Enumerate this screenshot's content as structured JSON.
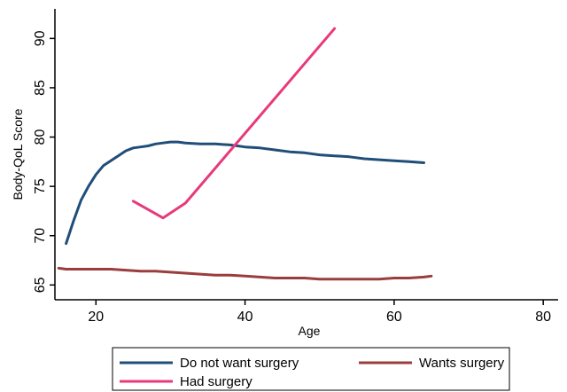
{
  "chart_data": {
    "type": "line",
    "xlabel": "Age",
    "ylabel": "Body-QoL Score",
    "xlim": [
      14.5,
      82
    ],
    "ylim": [
      63.5,
      93
    ],
    "x_ticks": [
      20,
      40,
      60,
      80
    ],
    "y_ticks": [
      65,
      70,
      75,
      80,
      85,
      90
    ],
    "grid": false,
    "legend_position": "bottom",
    "series": [
      {
        "name": "Do not want surgery",
        "color": "#1f4e79",
        "x": [
          16,
          17,
          18,
          19,
          20,
          21,
          22,
          23,
          24,
          25,
          26,
          27,
          28,
          29,
          30,
          31,
          32,
          34,
          36,
          38,
          40,
          42,
          44,
          46,
          48,
          50,
          52,
          54,
          56,
          58,
          60,
          62,
          64
        ],
        "y": [
          69.2,
          71.5,
          73.6,
          75.0,
          76.2,
          77.1,
          77.6,
          78.1,
          78.6,
          78.9,
          79.0,
          79.1,
          79.3,
          79.4,
          79.5,
          79.5,
          79.4,
          79.3,
          79.3,
          79.2,
          79.0,
          78.9,
          78.7,
          78.5,
          78.4,
          78.2,
          78.1,
          78.0,
          77.8,
          77.7,
          77.6,
          77.5,
          77.4
        ]
      },
      {
        "name": "Wants surgery",
        "color": "#9b3d3d",
        "x": [
          15,
          16,
          18,
          20,
          22,
          24,
          26,
          28,
          30,
          32,
          34,
          36,
          38,
          40,
          42,
          44,
          46,
          48,
          50,
          52,
          54,
          56,
          58,
          60,
          62,
          64,
          65
        ],
        "y": [
          66.7,
          66.6,
          66.6,
          66.6,
          66.6,
          66.5,
          66.4,
          66.4,
          66.3,
          66.2,
          66.1,
          66.0,
          66.0,
          65.9,
          65.8,
          65.7,
          65.7,
          65.7,
          65.6,
          65.6,
          65.6,
          65.6,
          65.6,
          65.7,
          65.7,
          65.8,
          65.9
        ]
      },
      {
        "name": "Had surgery",
        "color": "#e8397a",
        "x": [
          25,
          29,
          32,
          52
        ],
        "y": [
          73.5,
          71.8,
          73.3,
          91.0
        ]
      }
    ]
  }
}
